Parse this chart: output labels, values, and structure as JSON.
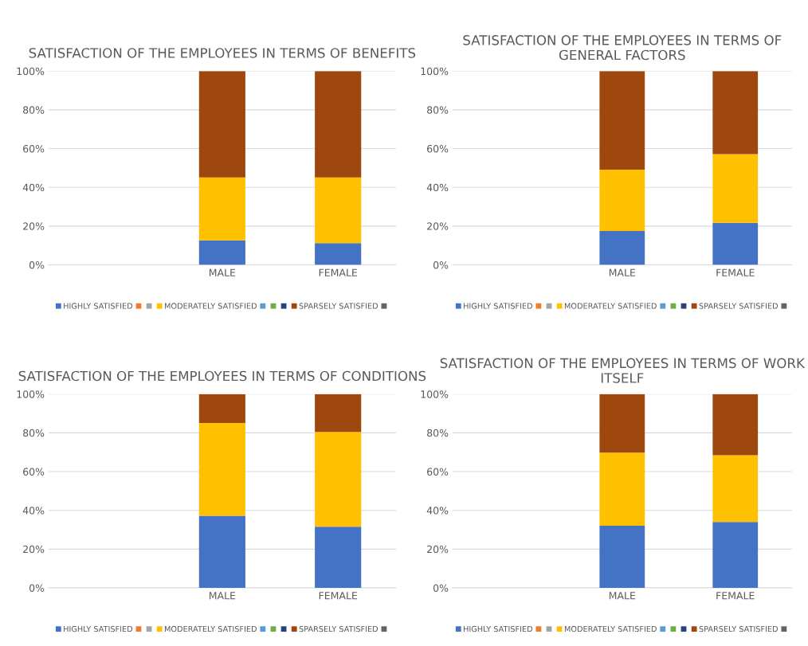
{
  "chart_data": [
    {
      "type": "bar",
      "stacked": true,
      "title": "SATISFACTION OF THE EMPLOYEES IN TERMS OF BENEFITS",
      "categories": [
        null,
        "MALE",
        "FEMALE"
      ],
      "ylim": [
        0,
        1
      ],
      "yticks": [
        {
          "value": 0,
          "label": "0%"
        },
        {
          "value": 0.2,
          "label": "20%"
        },
        {
          "value": 0.4,
          "label": "40%"
        },
        {
          "value": 0.6,
          "label": "60%"
        },
        {
          "value": 0.8,
          "label": "80%"
        },
        {
          "value": 1,
          "label": "100%"
        }
      ],
      "grid": "y",
      "legend": "bottom",
      "series": [
        {
          "name": "HIGHLY SATISFIED",
          "color": "#4472c4",
          "values": [
            null,
            0.126,
            0.112
          ]
        },
        {
          "color": "#ed7d31",
          "values": [
            null,
            null,
            null
          ]
        },
        {
          "color": "#a5a5a5",
          "values": [
            null,
            null,
            null
          ]
        },
        {
          "name": "MODERATELY SATISFIED",
          "color": "#ffc000",
          "values": [
            null,
            0.325,
            0.339
          ]
        },
        {
          "color": "#5b9bd5",
          "values": [
            null,
            null,
            null
          ]
        },
        {
          "color": "#70ad47",
          "values": [
            null,
            null,
            null
          ]
        },
        {
          "color": "#264478",
          "values": [
            null,
            null,
            null
          ]
        },
        {
          "name": "SPARSELY SATISFIED",
          "color": "#9e480e",
          "values": [
            null,
            0.549,
            0.549
          ]
        },
        {
          "color": "#636363",
          "values": [
            null,
            null,
            null
          ]
        }
      ]
    },
    {
      "type": "bar",
      "stacked": true,
      "title": "SATISFACTION OF THE EMPLOYEES IN TERMS OF GENERAL FACTORS",
      "categories": [
        null,
        "MALE",
        "FEMALE"
      ],
      "ylim": [
        0,
        1
      ],
      "yticks": [
        {
          "value": 0,
          "label": "0%"
        },
        {
          "value": 0.2,
          "label": "20%"
        },
        {
          "value": 0.4,
          "label": "40%"
        },
        {
          "value": 0.6,
          "label": "60%"
        },
        {
          "value": 0.8,
          "label": "80%"
        },
        {
          "value": 1,
          "label": "100%"
        }
      ],
      "grid": "y",
      "legend": "bottom",
      "series": [
        {
          "name": "HIGHLY SATISFIED",
          "color": "#4472c4",
          "values": [
            null,
            0.175,
            0.217
          ]
        },
        {
          "color": "#ed7d31",
          "values": [
            null,
            null,
            null
          ]
        },
        {
          "color": "#a5a5a5",
          "values": [
            null,
            null,
            null
          ]
        },
        {
          "name": "MODERATELY SATISFIED",
          "color": "#ffc000",
          "values": [
            null,
            0.316,
            0.354
          ]
        },
        {
          "color": "#5b9bd5",
          "values": [
            null,
            null,
            null
          ]
        },
        {
          "color": "#70ad47",
          "values": [
            null,
            null,
            null
          ]
        },
        {
          "color": "#264478",
          "values": [
            null,
            null,
            null
          ]
        },
        {
          "name": "SPARSELY SATISFIED",
          "color": "#9e480e",
          "values": [
            null,
            0.509,
            0.429
          ]
        },
        {
          "color": "#636363",
          "values": [
            null,
            null,
            null
          ]
        }
      ]
    },
    {
      "type": "bar",
      "stacked": true,
      "title": "SATISFACTION OF THE EMPLOYEES IN TERMS OF CONDITIONS",
      "categories": [
        null,
        "MALE",
        "FEMALE"
      ],
      "ylim": [
        0,
        1
      ],
      "yticks": [
        {
          "value": 0,
          "label": "0%"
        },
        {
          "value": 0.2,
          "label": "20%"
        },
        {
          "value": 0.4,
          "label": "40%"
        },
        {
          "value": 0.6,
          "label": "60%"
        },
        {
          "value": 0.8,
          "label": "80%"
        },
        {
          "value": 1,
          "label": "100%"
        }
      ],
      "grid": "y",
      "legend": "bottom",
      "series": [
        {
          "name": "HIGHLY SATISFIED",
          "color": "#4472c4",
          "values": [
            null,
            0.372,
            0.316
          ]
        },
        {
          "color": "#ed7d31",
          "values": [
            null,
            null,
            null
          ]
        },
        {
          "color": "#a5a5a5",
          "values": [
            null,
            null,
            null
          ]
        },
        {
          "name": "MODERATELY SATISFIED",
          "color": "#ffc000",
          "values": [
            null,
            0.479,
            0.489
          ]
        },
        {
          "color": "#5b9bd5",
          "values": [
            null,
            null,
            null
          ]
        },
        {
          "color": "#70ad47",
          "values": [
            null,
            null,
            null
          ]
        },
        {
          "color": "#264478",
          "values": [
            null,
            null,
            null
          ]
        },
        {
          "name": "SPARSELY SATISFIED",
          "color": "#9e480e",
          "values": [
            null,
            0.149,
            0.195
          ]
        },
        {
          "color": "#636363",
          "values": [
            null,
            null,
            null
          ]
        }
      ]
    },
    {
      "type": "bar",
      "stacked": true,
      "title": "SATISFACTION OF THE EMPLOYEES IN TERMS OF WORK ITSELF",
      "categories": [
        null,
        "MALE",
        "FEMALE"
      ],
      "ylim": [
        0,
        1
      ],
      "yticks": [
        {
          "value": 0,
          "label": "0%"
        },
        {
          "value": 0.2,
          "label": "20%"
        },
        {
          "value": 0.4,
          "label": "40%"
        },
        {
          "value": 0.6,
          "label": "60%"
        },
        {
          "value": 0.8,
          "label": "80%"
        },
        {
          "value": 1,
          "label": "100%"
        }
      ],
      "grid": "y",
      "legend": "bottom",
      "series": [
        {
          "name": "HIGHLY SATISFIED",
          "color": "#4472c4",
          "values": [
            null,
            0.321,
            0.34
          ]
        },
        {
          "color": "#ed7d31",
          "values": [
            null,
            null,
            null
          ]
        },
        {
          "color": "#a5a5a5",
          "values": [
            null,
            null,
            null
          ]
        },
        {
          "name": "MODERATELY SATISFIED",
          "color": "#ffc000",
          "values": [
            null,
            0.377,
            0.344
          ]
        },
        {
          "color": "#5b9bd5",
          "values": [
            null,
            null,
            null
          ]
        },
        {
          "color": "#70ad47",
          "values": [
            null,
            null,
            null
          ]
        },
        {
          "color": "#264478",
          "values": [
            null,
            null,
            null
          ]
        },
        {
          "name": "SPARSELY SATISFIED",
          "color": "#9e480e",
          "values": [
            null,
            0.302,
            0.316
          ]
        },
        {
          "color": "#636363",
          "values": [
            null,
            null,
            null
          ]
        }
      ]
    }
  ]
}
